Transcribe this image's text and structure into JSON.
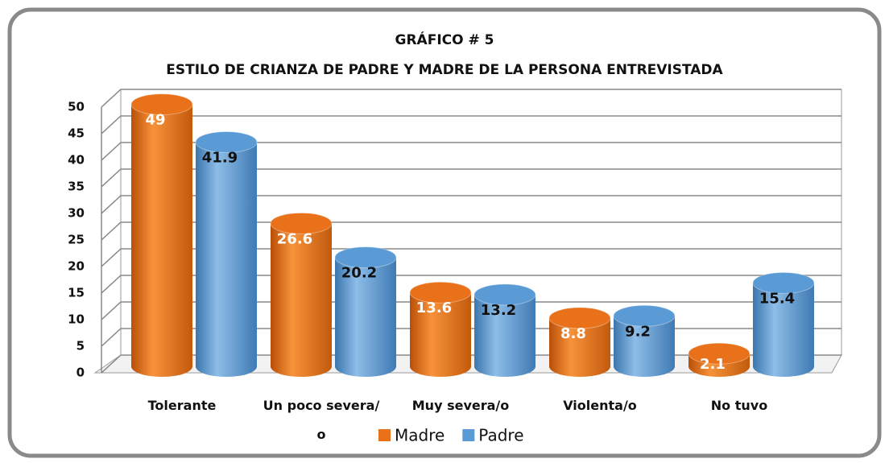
{
  "chart_data": {
    "type": "bar3d",
    "title": "GRÁFICO # 5",
    "subtitle": "ESTILO DE CRIANZA DE PADRE Y MADRE DE LA PERSONA ENTREVISTADA",
    "categories": [
      "Tolerante",
      "Un poco severa/ o",
      "Muy severa/o",
      "Violenta/o",
      "No tuvo"
    ],
    "series": [
      {
        "name": "Madre",
        "color": "#e8711a",
        "values": [
          49,
          26.6,
          13.6,
          8.8,
          2.1
        ]
      },
      {
        "name": "Padre",
        "color": "#5b9bd5",
        "values": [
          41.9,
          20.2,
          13.2,
          9.2,
          15.4
        ]
      }
    ],
    "ylim": [
      0,
      50
    ],
    "yticks": [
      0,
      5,
      10,
      15,
      20,
      25,
      30,
      35,
      40,
      45,
      50
    ],
    "grid": true,
    "legend": "bottom"
  }
}
